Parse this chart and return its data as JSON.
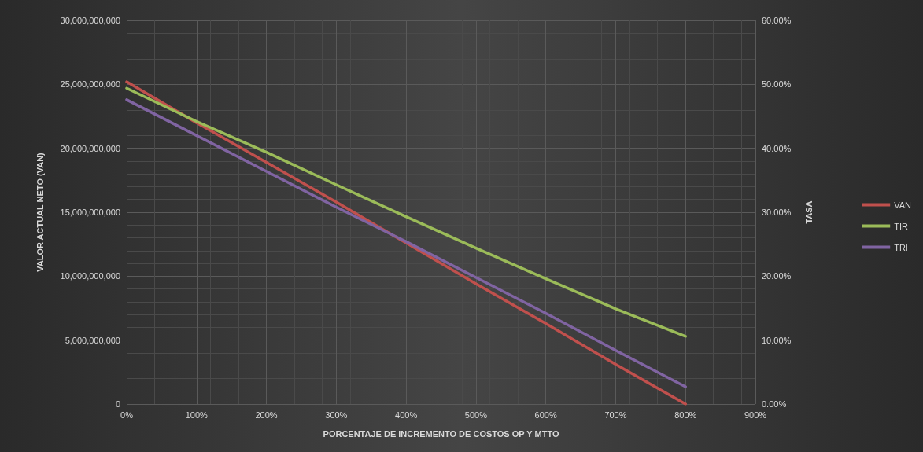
{
  "chart_data": {
    "type": "line",
    "xlabel": "PORCENTAJE DE INCREMENTO DE COSTOS OP Y MTTO",
    "ylabel": "VALOR ACTUAL NETO (VAN)",
    "y2label": "TASA",
    "x": [
      0,
      100,
      200,
      300,
      400,
      500,
      600,
      700,
      800
    ],
    "xlim": [
      0,
      900
    ],
    "xticks": [
      {
        "value": 0,
        "label": "0%"
      },
      {
        "value": 100,
        "label": "100%"
      },
      {
        "value": 200,
        "label": "200%"
      },
      {
        "value": 300,
        "label": "300%"
      },
      {
        "value": 400,
        "label": "400%"
      },
      {
        "value": 500,
        "label": "500%"
      },
      {
        "value": 600,
        "label": "600%"
      },
      {
        "value": 700,
        "label": "700%"
      },
      {
        "value": 800,
        "label": "800%"
      },
      {
        "value": 900,
        "label": "900%"
      }
    ],
    "ylim": [
      0,
      30000000000
    ],
    "yticks": [
      0,
      {
        "value": 5000000000,
        "label": "5,000,000,000"
      },
      {
        "value": 10000000000,
        "label": "10,000,000,000"
      },
      {
        "value": 15000000000,
        "label": "15,000,000,000"
      },
      {
        "value": 20000000000,
        "label": "20,000,000,000"
      },
      {
        "value": 25000000000,
        "label": "25,000,000,000"
      },
      {
        "value": 30000000000,
        "label": "30,000,000,000"
      }
    ],
    "y2lim": [
      0,
      60
    ],
    "y2ticks": [
      {
        "value": 0,
        "label": "0.00%"
      },
      {
        "value": 10,
        "label": "10.00%"
      },
      {
        "value": 20,
        "label": "20.00%"
      },
      {
        "value": 30,
        "label": "30.00%"
      },
      {
        "value": 40,
        "label": "40.00%"
      },
      {
        "value": 50,
        "label": "50.00%"
      },
      {
        "value": 60,
        "label": "60.00%"
      }
    ],
    "series": [
      {
        "name": "VAN",
        "color": "#c0504d",
        "values": [
          25200000000,
          22000000000,
          18900000000,
          15800000000,
          12600000000,
          9400000000,
          6300000000,
          3100000000,
          0
        ]
      },
      {
        "name": "TIR",
        "color": "#9bbb59",
        "axis": "y2",
        "values": [
          49.4,
          44.2,
          39.4,
          34.3,
          29.3,
          24.4,
          19.6,
          14.9,
          10.6
        ]
      },
      {
        "name": "TRI",
        "color": "#8064a2",
        "axis": "y2",
        "values": [
          47.6,
          42.0,
          36.4,
          30.8,
          25.4,
          19.8,
          14.2,
          8.4,
          2.7
        ]
      }
    ],
    "grid": true,
    "legend": "right",
    "marker": "none",
    "line_style": "solid"
  }
}
